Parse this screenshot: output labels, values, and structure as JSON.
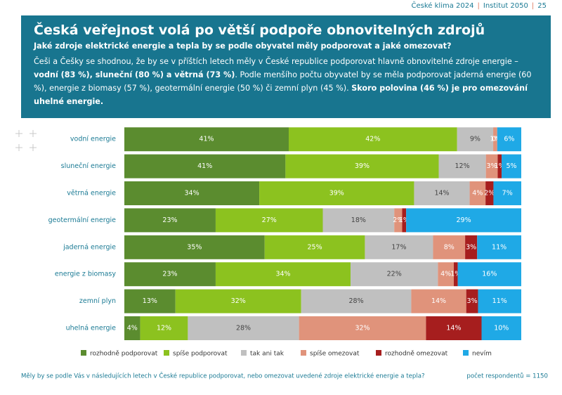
{
  "header": {
    "publication": "České klima 2024",
    "publisher": "Institut 2050",
    "page": "25"
  },
  "chart_data": {
    "type": "stacked-bar-horizontal",
    "title": "Česká veřejnost volá po větší podpoře obnovitelných zdrojů",
    "subtitle": "Jaké zdroje elektrické energie a tepla by se podle obyvatel měly podporovat a jaké omezovat?",
    "paragraph": [
      {
        "text": "Češi a Češky se shodnou, že by se v příštích letech měly v České republice podporovat hlavně obnovitelné zdroje energie – ",
        "bold": false
      },
      {
        "text": "vodní (83 %), sluneční (80 %) a větrná (73 %)",
        "bold": true
      },
      {
        "text": ". Podle menšího počtu obyvatel by se měla podporovat jaderná energie (60 %), energie z biomasy (57 %), geotermální energie (50 %) či zemní plyn (45 %). ",
        "bold": false
      },
      {
        "text": "Skoro polovina (46 %) je pro omezování uhelné energie.",
        "bold": true
      }
    ],
    "categories": [
      "vodní energie",
      "sluneční energie",
      "větrná energie",
      "geotermální energie",
      "jaderná energie",
      "energie z biomasy",
      "zemní plyn",
      "uhelná energie"
    ],
    "series": [
      {
        "name": "rozhodně podporovat",
        "color": "#5b8c2f",
        "values": [
          41,
          41,
          34,
          23,
          35,
          23,
          13,
          4
        ],
        "value_labels": [
          "41%",
          "41%",
          "34%",
          "23%",
          "35%",
          "23%",
          "13%",
          "4%"
        ]
      },
      {
        "name": "spíše podporovat",
        "color": "#8cc21f",
        "values": [
          42,
          39,
          39,
          27,
          25,
          34,
          32,
          12
        ],
        "value_labels": [
          "42%",
          "39%",
          "39%",
          "27%",
          "25%",
          "34%",
          "32%",
          "12%"
        ]
      },
      {
        "name": "tak ani tak",
        "color": "#c0c0c0",
        "values": [
          9,
          12,
          14,
          18,
          17,
          22,
          28,
          28
        ],
        "value_labels": [
          "9%",
          "12%",
          "14%",
          "18%",
          "17%",
          "22%",
          "28%",
          "28%"
        ]
      },
      {
        "name": "spíše omezovat",
        "color": "#e0937b",
        "values": [
          1,
          3,
          4,
          2,
          8,
          4,
          14,
          32
        ],
        "value_labels": [
          "1%",
          "3%",
          "4%",
          "2%",
          "8%",
          "4%",
          "14%",
          "32%"
        ]
      },
      {
        "name": "rozhodně omezovat",
        "color": "#a61e1e",
        "values": [
          0,
          1,
          2,
          1,
          3,
          1,
          3,
          14
        ],
        "value_labels": [
          "0%",
          "1%",
          "2%",
          "1%",
          "3%",
          "1%",
          "3%",
          "14%"
        ]
      },
      {
        "name": "nevím",
        "color": "#1fa9e6",
        "values": [
          6,
          5,
          7,
          29,
          11,
          16,
          11,
          10
        ],
        "value_labels": [
          "6%",
          "5%",
          "7%",
          "29%",
          "11%",
          "16%",
          "11%",
          "10%"
        ]
      }
    ],
    "question": "Měly by se podle Vás v následujících letech v České republice podporovat, nebo omezovat uvedené zdroje elektrické energie a tepla?",
    "sample_note": "počet respondentů = 1150"
  }
}
